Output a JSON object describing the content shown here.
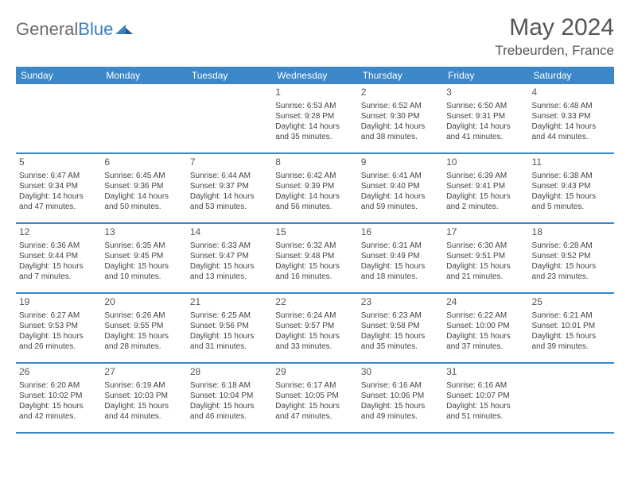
{
  "brand": {
    "part1": "General",
    "part2": "Blue"
  },
  "title": "May 2024",
  "location": "Trebeurden, France",
  "header_bg": "#3b87c8",
  "border_color": "#3b87c8",
  "text_color": "#444444",
  "daynum_color": "#555555",
  "dow": [
    "Sunday",
    "Monday",
    "Tuesday",
    "Wednesday",
    "Thursday",
    "Friday",
    "Saturday"
  ],
  "weeks": [
    [
      null,
      null,
      null,
      {
        "n": "1",
        "sr": "6:53 AM",
        "ss": "9:28 PM",
        "dl": "14 hours and 35 minutes."
      },
      {
        "n": "2",
        "sr": "6:52 AM",
        "ss": "9:30 PM",
        "dl": "14 hours and 38 minutes."
      },
      {
        "n": "3",
        "sr": "6:50 AM",
        "ss": "9:31 PM",
        "dl": "14 hours and 41 minutes."
      },
      {
        "n": "4",
        "sr": "6:48 AM",
        "ss": "9:33 PM",
        "dl": "14 hours and 44 minutes."
      }
    ],
    [
      {
        "n": "5",
        "sr": "6:47 AM",
        "ss": "9:34 PM",
        "dl": "14 hours and 47 minutes."
      },
      {
        "n": "6",
        "sr": "6:45 AM",
        "ss": "9:36 PM",
        "dl": "14 hours and 50 minutes."
      },
      {
        "n": "7",
        "sr": "6:44 AM",
        "ss": "9:37 PM",
        "dl": "14 hours and 53 minutes."
      },
      {
        "n": "8",
        "sr": "6:42 AM",
        "ss": "9:39 PM",
        "dl": "14 hours and 56 minutes."
      },
      {
        "n": "9",
        "sr": "6:41 AM",
        "ss": "9:40 PM",
        "dl": "14 hours and 59 minutes."
      },
      {
        "n": "10",
        "sr": "6:39 AM",
        "ss": "9:41 PM",
        "dl": "15 hours and 2 minutes."
      },
      {
        "n": "11",
        "sr": "6:38 AM",
        "ss": "9:43 PM",
        "dl": "15 hours and 5 minutes."
      }
    ],
    [
      {
        "n": "12",
        "sr": "6:36 AM",
        "ss": "9:44 PM",
        "dl": "15 hours and 7 minutes."
      },
      {
        "n": "13",
        "sr": "6:35 AM",
        "ss": "9:45 PM",
        "dl": "15 hours and 10 minutes."
      },
      {
        "n": "14",
        "sr": "6:33 AM",
        "ss": "9:47 PM",
        "dl": "15 hours and 13 minutes."
      },
      {
        "n": "15",
        "sr": "6:32 AM",
        "ss": "9:48 PM",
        "dl": "15 hours and 16 minutes."
      },
      {
        "n": "16",
        "sr": "6:31 AM",
        "ss": "9:49 PM",
        "dl": "15 hours and 18 minutes."
      },
      {
        "n": "17",
        "sr": "6:30 AM",
        "ss": "9:51 PM",
        "dl": "15 hours and 21 minutes."
      },
      {
        "n": "18",
        "sr": "6:28 AM",
        "ss": "9:52 PM",
        "dl": "15 hours and 23 minutes."
      }
    ],
    [
      {
        "n": "19",
        "sr": "6:27 AM",
        "ss": "9:53 PM",
        "dl": "15 hours and 26 minutes."
      },
      {
        "n": "20",
        "sr": "6:26 AM",
        "ss": "9:55 PM",
        "dl": "15 hours and 28 minutes."
      },
      {
        "n": "21",
        "sr": "6:25 AM",
        "ss": "9:56 PM",
        "dl": "15 hours and 31 minutes."
      },
      {
        "n": "22",
        "sr": "6:24 AM",
        "ss": "9:57 PM",
        "dl": "15 hours and 33 minutes."
      },
      {
        "n": "23",
        "sr": "6:23 AM",
        "ss": "9:58 PM",
        "dl": "15 hours and 35 minutes."
      },
      {
        "n": "24",
        "sr": "6:22 AM",
        "ss": "10:00 PM",
        "dl": "15 hours and 37 minutes."
      },
      {
        "n": "25",
        "sr": "6:21 AM",
        "ss": "10:01 PM",
        "dl": "15 hours and 39 minutes."
      }
    ],
    [
      {
        "n": "26",
        "sr": "6:20 AM",
        "ss": "10:02 PM",
        "dl": "15 hours and 42 minutes."
      },
      {
        "n": "27",
        "sr": "6:19 AM",
        "ss": "10:03 PM",
        "dl": "15 hours and 44 minutes."
      },
      {
        "n": "28",
        "sr": "6:18 AM",
        "ss": "10:04 PM",
        "dl": "15 hours and 46 minutes."
      },
      {
        "n": "29",
        "sr": "6:17 AM",
        "ss": "10:05 PM",
        "dl": "15 hours and 47 minutes."
      },
      {
        "n": "30",
        "sr": "6:16 AM",
        "ss": "10:06 PM",
        "dl": "15 hours and 49 minutes."
      },
      {
        "n": "31",
        "sr": "6:16 AM",
        "ss": "10:07 PM",
        "dl": "15 hours and 51 minutes."
      },
      null
    ]
  ],
  "labels": {
    "sunrise": "Sunrise: ",
    "sunset": "Sunset: ",
    "daylight": "Daylight: "
  }
}
